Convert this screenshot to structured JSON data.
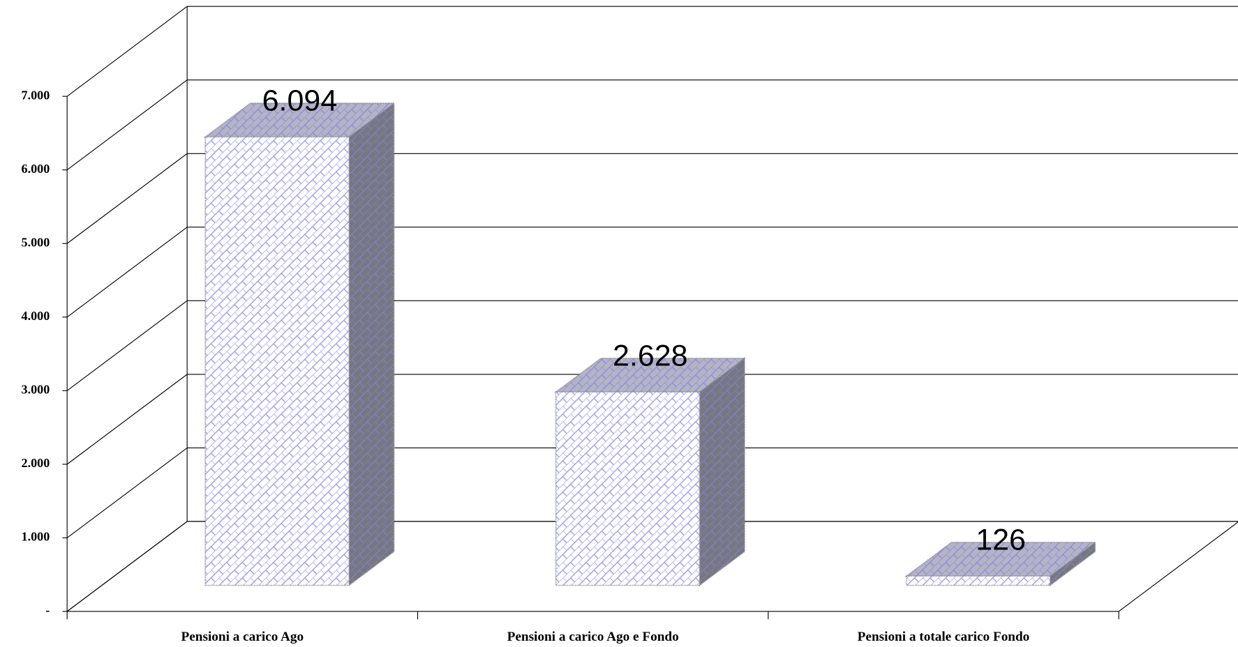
{
  "chart_data": {
    "type": "bar",
    "categories": [
      "Pensioni a carico Ago",
      "Pensioni a carico Ago e Fondo",
      "Pensioni a totale carico Fondo"
    ],
    "values": [
      6094,
      2628,
      126
    ],
    "value_labels": [
      "6.094",
      "2.628",
      "126"
    ],
    "color": "#9a9af0",
    "ylim": [
      0,
      7000
    ],
    "yticks": [
      {
        "value": 0,
        "label": "-"
      },
      {
        "value": 1000,
        "label": "1.000"
      },
      {
        "value": 2000,
        "label": "2.000"
      },
      {
        "value": 3000,
        "label": "3.000"
      },
      {
        "value": 4000,
        "label": "4.000"
      },
      {
        "value": 5000,
        "label": "5.000"
      },
      {
        "value": 6000,
        "label": "6.000"
      },
      {
        "value": 7000,
        "label": "7.000"
      }
    ],
    "grid": true
  }
}
